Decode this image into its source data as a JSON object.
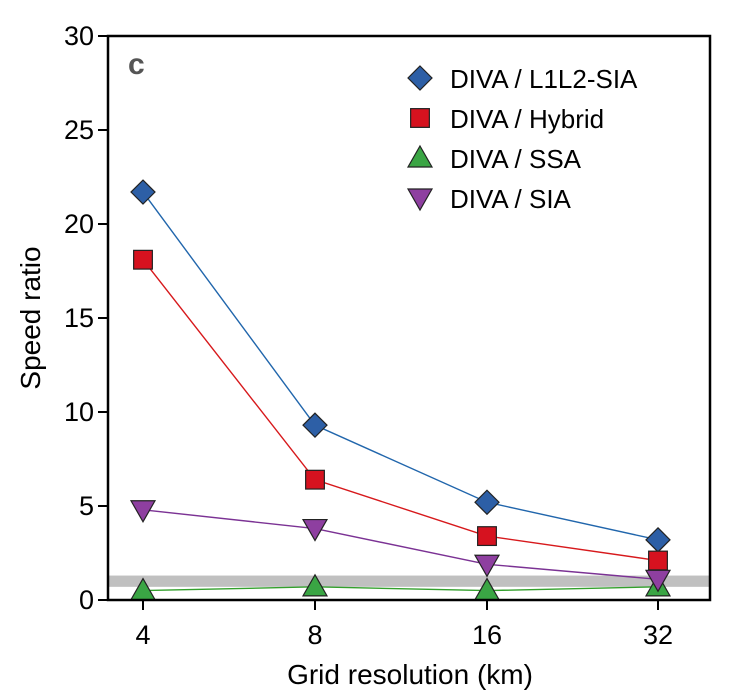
{
  "chart_data": {
    "type": "line",
    "panel_label": "c",
    "xlabel": "Grid resolution (km)",
    "ylabel": "Speed ratio",
    "categories": [
      "4",
      "8",
      "16",
      "32"
    ],
    "ylim": [
      0,
      30
    ],
    "yticks": [
      0,
      5,
      10,
      15,
      20,
      25,
      30
    ],
    "reference_band": [
      0.7,
      1.3
    ],
    "reference_band_color": "#c0c0c0",
    "legend_position": "top-right",
    "grid": false,
    "series": [
      {
        "name": "DIVA / L1L2-SIA",
        "marker": "diamond",
        "color": "#2166ac",
        "fill": "#2d5fa6",
        "values": [
          21.7,
          9.3,
          5.2,
          3.2
        ]
      },
      {
        "name": "DIVA / Hybrid",
        "marker": "square",
        "color": "#d7191c",
        "fill": "#d6121f",
        "values": [
          18.1,
          6.4,
          3.4,
          2.1
        ]
      },
      {
        "name": "DIVA / SSA",
        "marker": "triangle-up",
        "color": "#33a02c",
        "fill": "#3aa544",
        "values": [
          0.5,
          0.7,
          0.5,
          0.7
        ]
      },
      {
        "name": "DIVA / SIA",
        "marker": "triangle-down",
        "color": "#7b3294",
        "fill": "#8e3fa0",
        "values": [
          4.8,
          3.8,
          1.9,
          1.1
        ]
      }
    ]
  }
}
